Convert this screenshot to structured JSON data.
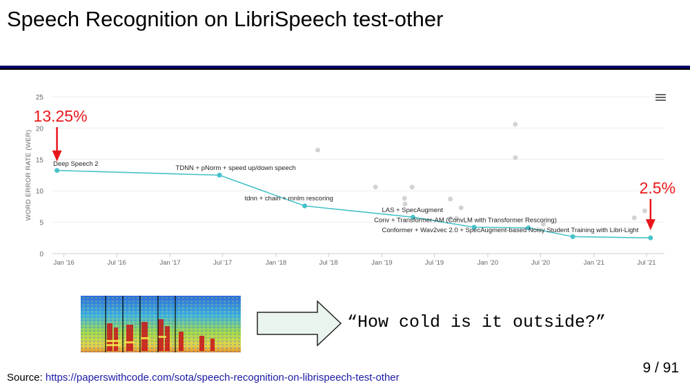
{
  "slide": {
    "title": "Speech Recognition on LibriSpeech test-other",
    "quote": "“How cold is it outside?”",
    "page_number": "9 / 91",
    "source_label": "Source: ",
    "source_url": "https://paperswithcode.com/sota/speech-recognition-on-librispeech-test-other"
  },
  "colors": {
    "accent": "#e8161a",
    "line": "#46c2c8",
    "scatter": "#d3d3d3",
    "rule": "#000066",
    "link": "#1a1aa6"
  },
  "icons": [
    "menu-icon",
    "red-arrow-icon",
    "spectrogram-image",
    "right-arrow-icon"
  ],
  "chart_data": {
    "type": "line",
    "title": "",
    "xlabel": "",
    "ylabel": "WORD ERROR RATE (WER)",
    "ylim": [
      0,
      25
    ],
    "yticks": [
      0,
      5,
      10,
      15,
      20,
      25
    ],
    "x_is_date": true,
    "xlim": [
      "2015-11-20",
      "2021-09-01"
    ],
    "xticks": [
      {
        "date": "2016-01-01",
        "label": "Jan '16"
      },
      {
        "date": "2016-07-01",
        "label": "Jul '16"
      },
      {
        "date": "2017-01-01",
        "label": "Jan '17"
      },
      {
        "date": "2017-07-01",
        "label": "Jul '17"
      },
      {
        "date": "2018-01-01",
        "label": "Jan '18"
      },
      {
        "date": "2018-07-01",
        "label": "Jul '18"
      },
      {
        "date": "2019-01-01",
        "label": "Jan '19"
      },
      {
        "date": "2019-07-01",
        "label": "Jul '19"
      },
      {
        "date": "2020-01-01",
        "label": "Jan '20"
      },
      {
        "date": "2020-07-01",
        "label": "Jul '20"
      },
      {
        "date": "2021-01-01",
        "label": "Jan '21"
      },
      {
        "date": "2021-07-01",
        "label": "Jul '21"
      }
    ],
    "grid": true,
    "series": [
      {
        "points": [
          {
            "x": "2015-12-08",
            "y": 13.25
          },
          {
            "x": "2017-06-20",
            "y": 12.5
          },
          {
            "x": "2018-04-10",
            "y": 7.6
          },
          {
            "x": "2019-04-18",
            "y": 5.8
          },
          {
            "x": "2019-11-15",
            "y": 4.2
          },
          {
            "x": "2020-05-20",
            "y": 4.1
          },
          {
            "x": "2020-10-20",
            "y": 2.7
          },
          {
            "x": "2021-07-15",
            "y": 2.5
          }
        ]
      }
    ],
    "scatter": [
      {
        "x": "2018-05-25",
        "y": 16.5
      },
      {
        "x": "2018-12-10",
        "y": 10.6
      },
      {
        "x": "2019-03-20",
        "y": 8.8
      },
      {
        "x": "2019-03-22",
        "y": 7.9
      },
      {
        "x": "2019-04-15",
        "y": 10.6
      },
      {
        "x": "2019-08-25",
        "y": 8.7
      },
      {
        "x": "2019-10-01",
        "y": 7.3
      },
      {
        "x": "2019-08-25",
        "y": 5.6
      },
      {
        "x": "2019-09-15",
        "y": 5.6
      },
      {
        "x": "2020-04-05",
        "y": 20.6
      },
      {
        "x": "2020-04-05",
        "y": 15.3
      },
      {
        "x": "2020-07-10",
        "y": 4.7
      },
      {
        "x": "2021-05-20",
        "y": 5.7
      },
      {
        "x": "2021-06-25",
        "y": 6.8
      }
    ],
    "annotations": [
      {
        "text": "Deep Speech 2",
        "x": "2015-11-25",
        "y": 14.0,
        "anchor": "start"
      },
      {
        "text": "TDNN + pNorm + speed up/down speech",
        "x": "2017-01-20",
        "y": 13.3,
        "anchor": "start"
      },
      {
        "text": "tdnn + chain + rnnlm rescoring",
        "x": "2017-09-15",
        "y": 8.5,
        "anchor": "start"
      },
      {
        "text": "LAS + SpecAugment",
        "x": "2019-01-01",
        "y": 6.6,
        "anchor": "start"
      },
      {
        "text": "Conv + Transformer-AM (ConvLM with Transformer Rescoring)",
        "x": "2018-12-05",
        "y": 5.0,
        "anchor": "start"
      },
      {
        "text": "Conformer + Wav2vec 2.0 + SpecAugment-based Noisy Student Training with Libri-Light",
        "x": "2019-01-01",
        "y": 3.4,
        "anchor": "start"
      }
    ],
    "callouts": [
      {
        "text": "13.25%",
        "x": "2015-12-08",
        "y": 13.25
      },
      {
        "text": "2.5%",
        "x": "2021-07-15",
        "y": 2.5
      }
    ]
  }
}
